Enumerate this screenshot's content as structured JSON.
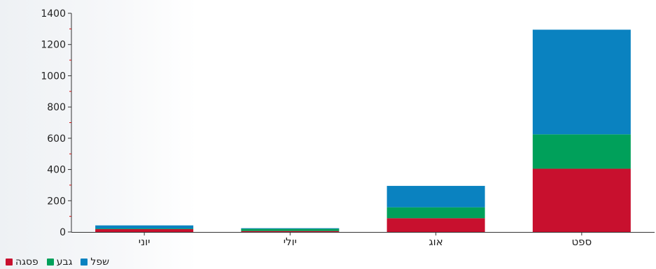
{
  "chart_data": {
    "type": "bar",
    "stacked": true,
    "categories": [
      "יוני",
      "יולי",
      "אוג",
      "ספט"
    ],
    "series": [
      {
        "name": "פסגה",
        "color": "#c8102e",
        "values": [
          18,
          6,
          88,
          405
        ]
      },
      {
        "name": "גבע",
        "color": "#00a05a",
        "values": [
          4,
          14,
          70,
          220
        ]
      },
      {
        "name": "שפל",
        "color": "#0a82c0",
        "values": [
          20,
          4,
          137,
          670
        ]
      }
    ],
    "yticks": [
      "0",
      "200",
      "400",
      "600",
      "800",
      "1000",
      "1200",
      "1400"
    ],
    "ylim": [
      0,
      1400
    ],
    "grid": false,
    "legend_position": "bottom-left"
  }
}
